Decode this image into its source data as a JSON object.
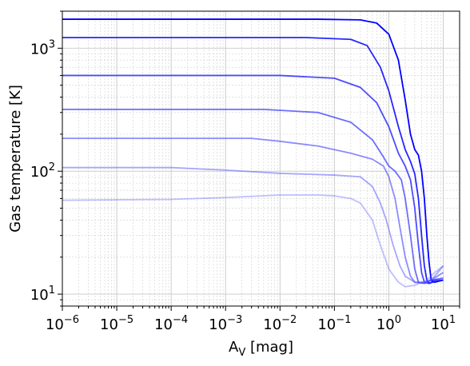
{
  "chart_data": {
    "type": "line",
    "title": "",
    "xlabel": "A",
    "xlabel_sub": "V",
    "xlabel_unit": " [mag]",
    "ylabel": "Gas temperature [K]",
    "xscale": "log",
    "yscale": "log",
    "xlim": [
      1e-06,
      20
    ],
    "ylim": [
      8,
      2000
    ],
    "grid": "major and minor, dashed gray",
    "legend": "none",
    "x_ticks": [
      {
        "value": 1e-06,
        "base": "10",
        "exp": "−6"
      },
      {
        "value": 1e-05,
        "base": "10",
        "exp": "−5"
      },
      {
        "value": 0.0001,
        "base": "10",
        "exp": "−4"
      },
      {
        "value": 0.001,
        "base": "10",
        "exp": "−3"
      },
      {
        "value": 0.01,
        "base": "10",
        "exp": "−2"
      },
      {
        "value": 0.1,
        "base": "10",
        "exp": "−1"
      },
      {
        "value": 1,
        "base": "10",
        "exp": "0"
      },
      {
        "value": 10,
        "base": "10",
        "exp": "1"
      }
    ],
    "y_ticks": [
      {
        "value": 10,
        "base": "10",
        "exp": "1"
      },
      {
        "value": 100,
        "base": "10",
        "exp": "2"
      },
      {
        "value": 1000,
        "base": "10",
        "exp": "3"
      }
    ],
    "series": [
      {
        "color": "#0000ff",
        "opacity": 1.0,
        "x": [
          1e-06,
          0.05,
          0.3,
          0.6,
          1.0,
          1.5,
          2.0,
          2.5,
          3.0,
          3.5,
          4.0,
          4.5,
          5.0,
          5.5,
          6.0,
          7.0,
          10.0
        ],
        "y": [
          1720,
          1720,
          1700,
          1600,
          1300,
          800,
          380,
          200,
          150,
          135,
          100,
          60,
          30,
          18,
          13,
          12.5,
          13
        ]
      },
      {
        "color": "#1010ff",
        "opacity": 0.9,
        "x": [
          1e-06,
          0.03,
          0.2,
          0.4,
          0.7,
          1.0,
          1.5,
          2.0,
          2.5,
          3.0,
          3.5,
          4.0,
          4.5,
          5.0,
          5.5,
          6.5,
          10.0
        ],
        "y": [
          1220,
          1220,
          1180,
          1050,
          700,
          450,
          230,
          150,
          120,
          95,
          60,
          30,
          17,
          13,
          12.3,
          12.5,
          13
        ]
      },
      {
        "color": "#2020ff",
        "opacity": 0.8,
        "x": [
          1e-06,
          0.01,
          0.1,
          0.3,
          0.6,
          1.0,
          1.5,
          2.0,
          2.5,
          3.0,
          3.5,
          4.0,
          4.5,
          5.5,
          7.0,
          10.0
        ],
        "y": [
          600,
          600,
          570,
          480,
          360,
          230,
          140,
          110,
          85,
          50,
          25,
          15,
          12.5,
          12.2,
          13,
          13
        ]
      },
      {
        "color": "#3030ff",
        "opacity": 0.7,
        "x": [
          1e-06,
          0.005,
          0.05,
          0.2,
          0.5,
          0.8,
          1.0,
          1.3,
          1.7,
          2.0,
          2.5,
          3.0,
          3.5,
          4.5,
          6.0,
          10.0
        ],
        "y": [
          318,
          318,
          300,
          250,
          180,
          130,
          110,
          100,
          85,
          60,
          30,
          16,
          12.5,
          12.2,
          13,
          13.5
        ]
      },
      {
        "color": "#4040ff",
        "opacity": 0.6,
        "x": [
          1e-06,
          0.003,
          0.01,
          0.05,
          0.2,
          0.5,
          0.8,
          1.0,
          1.3,
          1.6,
          2.0,
          2.5,
          3.0,
          4.0,
          6.0,
          10.0
        ],
        "y": [
          185,
          185,
          175,
          160,
          140,
          125,
          110,
          90,
          60,
          35,
          20,
          14,
          12.5,
          12.3,
          13,
          15
        ]
      },
      {
        "color": "#5050ff",
        "opacity": 0.5,
        "x": [
          1e-06,
          0.0001,
          0.001,
          0.01,
          0.1,
          0.3,
          0.5,
          0.7,
          0.9,
          1.2,
          1.6,
          2.0,
          3.0,
          5.0,
          7.0,
          10.0
        ],
        "y": [
          107,
          107,
          102,
          96,
          93,
          90,
          75,
          55,
          40,
          25,
          17,
          14,
          12.5,
          12.5,
          14,
          17
        ]
      },
      {
        "color": "#6060ff",
        "opacity": 0.4,
        "x": [
          1e-06,
          0.0001,
          0.001,
          0.01,
          0.05,
          0.1,
          0.2,
          0.3,
          0.5,
          0.7,
          1.0,
          1.5,
          2.0,
          3.0,
          5.0,
          7.0,
          10.0
        ],
        "y": [
          58,
          59,
          61,
          64,
          64,
          63,
          60,
          55,
          40,
          25,
          16,
          12.5,
          11.5,
          11.8,
          13,
          15,
          17
        ]
      }
    ]
  }
}
